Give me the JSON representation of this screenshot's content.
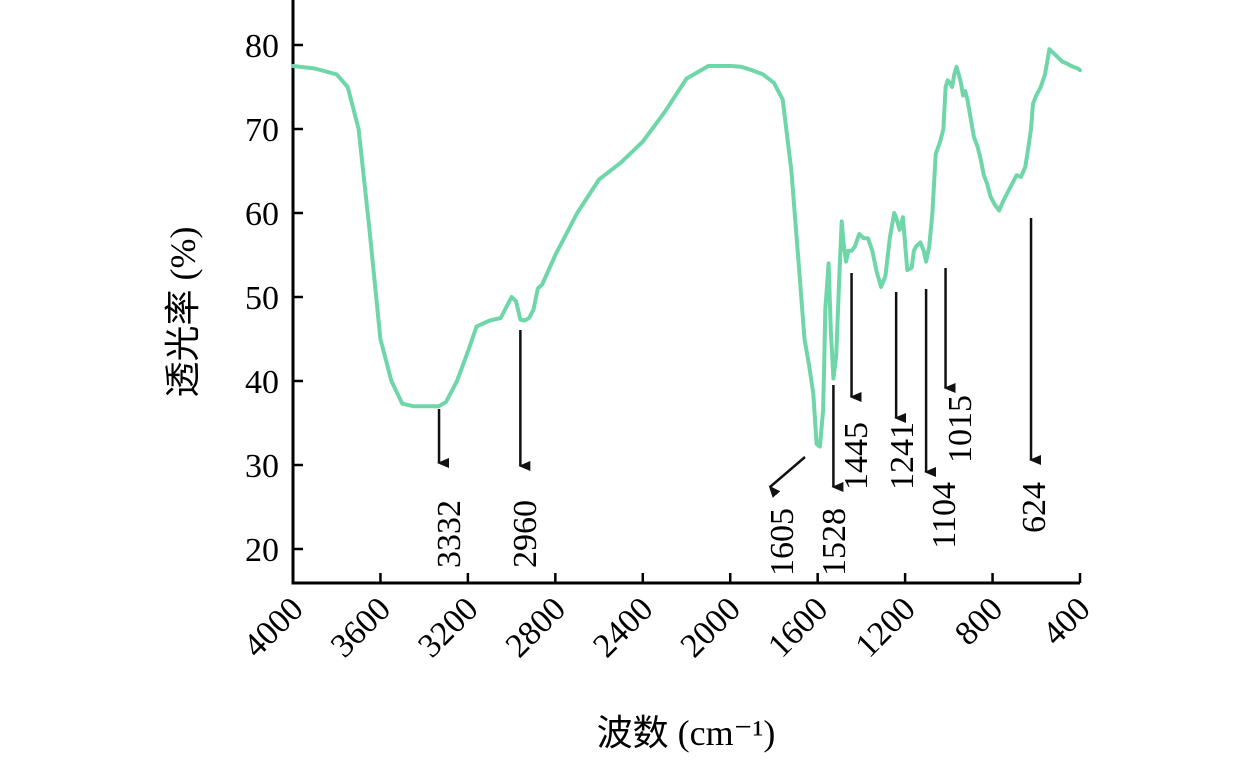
{
  "chart_data": {
    "type": "line",
    "title": "",
    "xlabel": "波数 (cm⁻¹)",
    "ylabel": "透光率 (%)",
    "xlim": [
      4000,
      400
    ],
    "ylim": [
      16,
      85
    ],
    "x_reversed": true,
    "grid": false,
    "legend": "none",
    "x_ticks": [
      4000,
      3600,
      3200,
      2800,
      2400,
      2000,
      1600,
      1200,
      800,
      400
    ],
    "y_ticks": [
      20,
      30,
      40,
      50,
      60,
      70,
      80
    ],
    "line_color": "#6ed6a8",
    "series": [
      {
        "name": "",
        "x": [
          4000,
          3900,
          3800,
          3750,
          3700,
          3650,
          3600,
          3550,
          3500,
          3450,
          3400,
          3360,
          3332,
          3300,
          3250,
          3200,
          3160,
          3100,
          3050,
          3000,
          2980,
          2960,
          2940,
          2920,
          2900,
          2880,
          2860,
          2800,
          2700,
          2600,
          2500,
          2400,
          2300,
          2200,
          2100,
          2000,
          1950,
          1900,
          1850,
          1800,
          1760,
          1720,
          1690,
          1660,
          1640,
          1620,
          1605,
          1590,
          1575,
          1570,
          1565,
          1550,
          1540,
          1528,
          1515,
          1500,
          1490,
          1480,
          1470,
          1460,
          1445,
          1430,
          1410,
          1390,
          1370,
          1350,
          1330,
          1310,
          1290,
          1270,
          1250,
          1241,
          1225,
          1210,
          1190,
          1170,
          1160,
          1150,
          1130,
          1115,
          1104,
          1090,
          1075,
          1060,
          1040,
          1025,
          1015,
          1005,
          995,
          985,
          975,
          965,
          955,
          945,
          935,
          925,
          915,
          905,
          895,
          885,
          870,
          855,
          840,
          825,
          810,
          790,
          770,
          750,
          730,
          710,
          690,
          670,
          650,
          635,
          624,
          615,
          600,
          580,
          560,
          540,
          520,
          500,
          480,
          460,
          440,
          420,
          410,
          400
        ],
        "values": [
          77.5,
          77.2,
          76.5,
          75,
          70,
          58,
          45,
          40,
          37.3,
          37.0,
          37.0,
          37.0,
          37.0,
          37.5,
          40,
          43.5,
          46.5,
          47.2,
          47.5,
          50.0,
          49.5,
          47.3,
          47.2,
          47.5,
          48.5,
          51.0,
          51.5,
          55,
          60,
          64,
          66,
          68.5,
          72,
          76,
          77.5,
          77.5,
          77.4,
          77.0,
          76.5,
          75.5,
          73.5,
          65,
          55,
          45,
          42,
          38.5,
          32.5,
          32.2,
          36.5,
          42,
          48.5,
          54,
          46,
          40.3,
          43,
          53,
          59,
          56,
          54.2,
          55.5,
          55.5,
          56,
          57.5,
          57.0,
          57.0,
          55.5,
          53,
          51.2,
          52.5,
          57,
          60,
          59.5,
          58,
          59.5,
          53.2,
          53.5,
          55.5,
          56.0,
          56.5,
          55.5,
          54.2,
          56,
          60,
          67,
          68.5,
          70,
          75,
          75.8,
          75.5,
          75.0,
          76.5,
          77.4,
          76.5,
          75.5,
          74.0,
          74.5,
          73.5,
          72,
          70.5,
          69.0,
          68,
          66.5,
          64.5,
          63.5,
          62,
          61.0,
          60.3,
          61.5,
          62.5,
          63.5,
          64.5,
          64.3,
          65.5,
          68,
          70,
          73,
          74,
          75,
          76.5,
          79.5,
          79.0,
          78.5,
          78,
          77.8,
          77.5,
          77.3,
          77.2,
          77.0
        ],
        "_note": "values in %"
      }
    ],
    "annotations": [
      {
        "label": "3332",
        "x": 3332
      },
      {
        "label": "2960",
        "x": 2960
      },
      {
        "label": "1605",
        "x": 1605
      },
      {
        "label": "1528",
        "x": 1528
      },
      {
        "label": "1445",
        "x": 1445
      },
      {
        "label": "1241",
        "x": 1241
      },
      {
        "label": "1104",
        "x": 1104
      },
      {
        "label": "1015",
        "x": 1015
      },
      {
        "label": "624",
        "x": 624
      }
    ]
  }
}
